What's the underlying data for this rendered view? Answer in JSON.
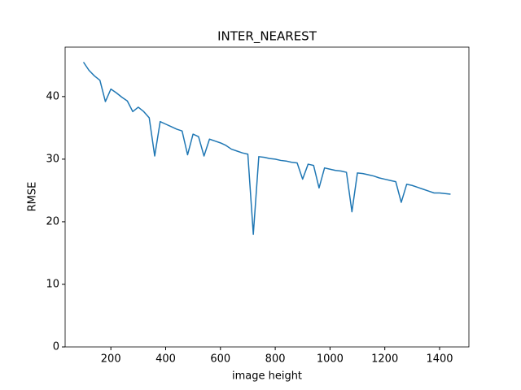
{
  "chart_data": {
    "type": "line",
    "title": "INTER_NEAREST",
    "xlabel": "image height",
    "ylabel": "RMSE",
    "x": [
      100,
      120,
      140,
      160,
      180,
      200,
      220,
      240,
      260,
      280,
      300,
      320,
      340,
      360,
      380,
      400,
      420,
      440,
      460,
      480,
      500,
      520,
      540,
      560,
      580,
      600,
      620,
      640,
      660,
      680,
      700,
      720,
      740,
      760,
      780,
      800,
      820,
      840,
      860,
      880,
      900,
      920,
      940,
      960,
      980,
      1000,
      1020,
      1040,
      1060,
      1080,
      1100,
      1120,
      1140,
      1160,
      1180,
      1200,
      1220,
      1240,
      1260,
      1280,
      1300,
      1320,
      1340,
      1360,
      1380,
      1400,
      1420,
      1440
    ],
    "series": [
      {
        "name": "RMSE",
        "color": "#1f77b4",
        "values": [
          45.5,
          44.2,
          43.3,
          42.6,
          39.2,
          41.2,
          40.6,
          39.9,
          39.3,
          37.6,
          38.3,
          37.6,
          36.6,
          30.5,
          36.0,
          35.6,
          35.2,
          34.8,
          34.5,
          30.7,
          34.0,
          33.6,
          30.5,
          33.2,
          32.9,
          32.6,
          32.2,
          31.6,
          31.3,
          31.0,
          30.8,
          18.0,
          30.4,
          30.3,
          30.1,
          30.0,
          29.8,
          29.7,
          29.5,
          29.4,
          26.8,
          29.2,
          29.0,
          25.4,
          28.6,
          28.4,
          28.2,
          28.1,
          27.9,
          21.6,
          27.8,
          27.7,
          27.5,
          27.3,
          27.0,
          26.8,
          26.6,
          26.4,
          23.1,
          26.0,
          25.8,
          25.5,
          25.2,
          24.9,
          24.6,
          24.6,
          24.5,
          24.4
        ]
      }
    ],
    "xlim": [
      33,
      1507
    ],
    "ylim": [
      0,
      47.9
    ],
    "xticks": [
      200,
      400,
      600,
      800,
      1000,
      1200,
      1400
    ],
    "yticks": [
      0,
      10,
      20,
      30,
      40
    ]
  }
}
